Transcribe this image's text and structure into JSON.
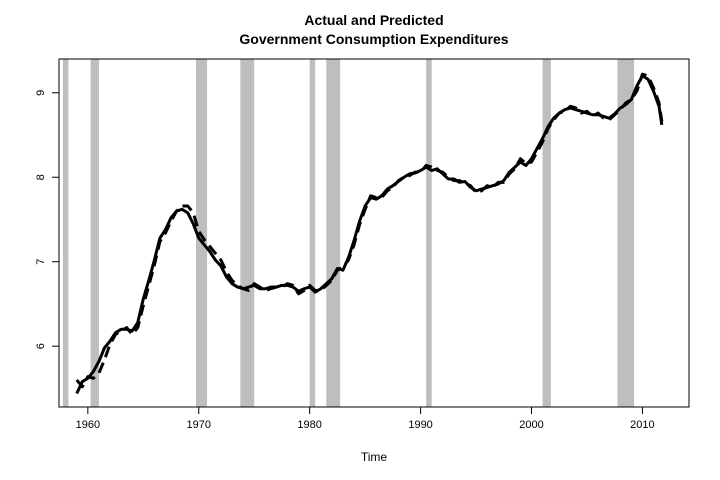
{
  "chart_data": {
    "type": "line",
    "title": [
      "Actual and Predicted",
      "Government Consumption Expenditures"
    ],
    "xlabel": "Time",
    "ylabel": "",
    "xlim": [
      1957.4,
      2014.2
    ],
    "ylim": [
      5.28,
      9.4
    ],
    "x_ticks": [
      1960,
      1970,
      1980,
      1990,
      2000,
      2010
    ],
    "y_ticks": [
      6,
      7,
      8,
      9
    ],
    "grid": false,
    "legend": "none",
    "recession_shading": [
      [
        1957.75,
        1958.25
      ],
      [
        1960.25,
        1961.0
      ],
      [
        1969.75,
        1970.75
      ],
      [
        1973.75,
        1975.0
      ],
      [
        1980.0,
        1980.5
      ],
      [
        1981.5,
        1982.75
      ],
      [
        1990.5,
        1991.0
      ],
      [
        2001.0,
        2001.75
      ],
      [
        2007.75,
        2009.25
      ]
    ],
    "series": [
      {
        "style": "solid",
        "x": [
          1959.0,
          1959.5,
          1960.0,
          1960.5,
          1961.0,
          1961.5,
          1962.0,
          1962.5,
          1963.0,
          1963.5,
          1964.0,
          1964.5,
          1965.0,
          1965.5,
          1966.0,
          1966.5,
          1967.0,
          1967.5,
          1968.0,
          1968.5,
          1969.0,
          1969.5,
          1970.0,
          1970.5,
          1971.0,
          1971.5,
          1972.0,
          1972.5,
          1973.0,
          1973.5,
          1974.0,
          1974.5,
          1975.0,
          1975.5,
          1976.0,
          1976.5,
          1977.0,
          1977.5,
          1978.0,
          1978.5,
          1979.0,
          1979.5,
          1980.0,
          1980.5,
          1981.0,
          1981.5,
          1982.0,
          1982.5,
          1983.0,
          1983.5,
          1984.0,
          1984.5,
          1985.0,
          1985.5,
          1986.0,
          1986.5,
          1987.0,
          1987.5,
          1988.0,
          1988.5,
          1989.0,
          1989.5,
          1990.0,
          1990.5,
          1991.0,
          1991.5,
          1992.0,
          1992.5,
          1993.0,
          1993.5,
          1994.0,
          1994.5,
          1995.0,
          1995.5,
          1996.0,
          1996.5,
          1997.0,
          1997.5,
          1998.0,
          1998.5,
          1999.0,
          1999.5,
          2000.0,
          2000.5,
          2001.0,
          2001.5,
          2002.0,
          2002.5,
          2003.0,
          2003.5,
          2004.0,
          2004.5,
          2005.0,
          2005.5,
          2006.0,
          2006.5,
          2007.0,
          2007.5,
          2008.0,
          2008.5,
          2009.0,
          2009.5,
          2010.0,
          2010.5,
          2011.0,
          2011.5,
          2011.75
        ],
        "values": [
          5.44,
          5.58,
          5.62,
          5.7,
          5.82,
          5.98,
          6.06,
          6.16,
          6.2,
          6.2,
          6.18,
          6.28,
          6.56,
          6.78,
          7.02,
          7.28,
          7.38,
          7.52,
          7.6,
          7.62,
          7.58,
          7.45,
          7.28,
          7.2,
          7.12,
          7.02,
          6.95,
          6.82,
          6.74,
          6.7,
          6.68,
          6.7,
          6.72,
          6.68,
          6.68,
          6.7,
          6.7,
          6.72,
          6.72,
          6.7,
          6.65,
          6.68,
          6.7,
          6.64,
          6.68,
          6.74,
          6.8,
          6.92,
          6.9,
          7.05,
          7.25,
          7.48,
          7.66,
          7.76,
          7.74,
          7.78,
          7.86,
          7.9,
          7.95,
          8.0,
          8.04,
          8.05,
          8.08,
          8.12,
          8.08,
          8.1,
          8.04,
          7.98,
          7.98,
          7.94,
          7.95,
          7.88,
          7.84,
          7.86,
          7.88,
          7.9,
          7.92,
          7.96,
          8.06,
          8.12,
          8.18,
          8.14,
          8.22,
          8.34,
          8.46,
          8.6,
          8.7,
          8.76,
          8.8,
          8.82,
          8.8,
          8.78,
          8.76,
          8.74,
          8.74,
          8.72,
          8.7,
          8.75,
          8.82,
          8.86,
          8.92,
          9.08,
          9.2,
          9.16,
          9.02,
          8.84,
          8.62
        ]
      },
      {
        "style": "dashed",
        "x": [
          1959.0,
          1959.5,
          1960.0,
          1960.5,
          1961.0,
          1961.5,
          1962.0,
          1962.5,
          1963.0,
          1963.5,
          1964.0,
          1964.5,
          1965.0,
          1965.5,
          1966.0,
          1966.5,
          1967.0,
          1967.5,
          1968.0,
          1968.5,
          1969.0,
          1969.5,
          1970.0,
          1970.5,
          1971.0,
          1971.5,
          1972.0,
          1972.5,
          1973.0,
          1973.5,
          1974.0,
          1974.5,
          1975.0,
          1975.5,
          1976.0,
          1976.5,
          1977.0,
          1977.5,
          1978.0,
          1978.5,
          1979.0,
          1979.5,
          1980.0,
          1980.5,
          1981.0,
          1981.5,
          1982.0,
          1982.5,
          1983.0,
          1983.5,
          1984.0,
          1984.5,
          1985.0,
          1985.5,
          1986.0,
          1986.5,
          1987.0,
          1987.5,
          1988.0,
          1988.5,
          1989.0,
          1989.5,
          1990.0,
          1990.5,
          1991.0,
          1991.5,
          1992.0,
          1992.5,
          1993.0,
          1993.5,
          1994.0,
          1994.5,
          1995.0,
          1995.5,
          1996.0,
          1996.5,
          1997.0,
          1997.5,
          1998.0,
          1998.5,
          1999.0,
          1999.5,
          2000.0,
          2000.5,
          2001.0,
          2001.5,
          2002.0,
          2002.5,
          2003.0,
          2003.5,
          2004.0,
          2004.5,
          2005.0,
          2005.5,
          2006.0,
          2006.5,
          2007.0,
          2007.5,
          2008.0,
          2008.5,
          2009.0,
          2009.5,
          2010.0,
          2010.5,
          2011.0,
          2011.5,
          2011.75
        ],
        "values": [
          5.6,
          5.52,
          5.64,
          5.62,
          5.68,
          5.84,
          6.02,
          6.14,
          6.18,
          6.22,
          6.14,
          6.22,
          6.48,
          6.72,
          6.96,
          7.24,
          7.34,
          7.48,
          7.6,
          7.66,
          7.66,
          7.58,
          7.36,
          7.26,
          7.18,
          7.1,
          7.02,
          6.88,
          6.78,
          6.72,
          6.68,
          6.66,
          6.74,
          6.7,
          6.66,
          6.68,
          6.7,
          6.7,
          6.74,
          6.72,
          6.62,
          6.66,
          6.72,
          6.66,
          6.66,
          6.72,
          6.78,
          6.9,
          6.94,
          7.02,
          7.2,
          7.44,
          7.62,
          7.78,
          7.76,
          7.76,
          7.84,
          7.88,
          7.96,
          8.0,
          8.02,
          8.06,
          8.06,
          8.14,
          8.12,
          8.08,
          8.06,
          8.0,
          7.96,
          7.96,
          7.93,
          7.9,
          7.82,
          7.84,
          7.9,
          7.88,
          7.94,
          7.94,
          8.04,
          8.1,
          8.22,
          8.16,
          8.18,
          8.3,
          8.42,
          8.58,
          8.68,
          8.76,
          8.78,
          8.84,
          8.82,
          8.76,
          8.78,
          8.72,
          8.76,
          8.7,
          8.68,
          8.74,
          8.8,
          8.88,
          8.92,
          9.02,
          9.22,
          9.2,
          9.06,
          8.88,
          8.66
        ]
      }
    ]
  }
}
